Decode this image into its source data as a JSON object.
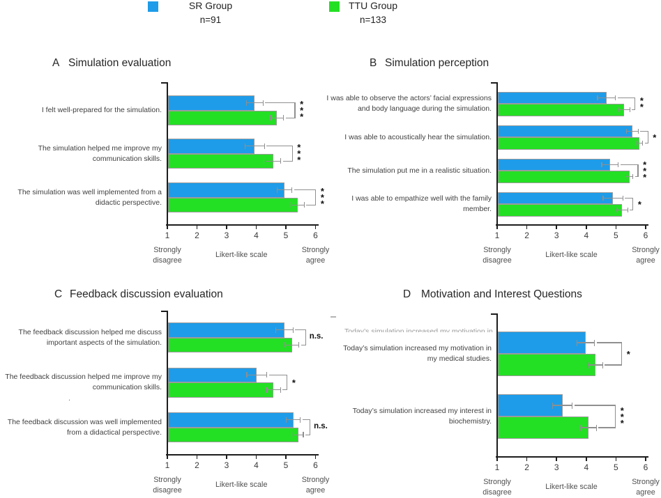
{
  "legend": {
    "items": [
      {
        "label": "SR Group",
        "n": "n=91",
        "color": "#1e9ce9"
      },
      {
        "label": "TTU Group",
        "n": "n=133",
        "color": "#24e024"
      }
    ]
  },
  "axis": {
    "min": 1,
    "max": 6,
    "ticks": [
      "1",
      "2",
      "3",
      "4",
      "5",
      "6"
    ],
    "left_label": "Strongly\ndisagree",
    "center_label": "Likert-like scale",
    "right_label": "Strongly\nagree"
  },
  "chart_data": [
    {
      "id": "A",
      "type": "bar",
      "title": "Simulation evaluation",
      "xlabel": "Likert-like scale",
      "xlim": [
        1,
        6
      ],
      "categories": [
        [
          "I felt well-prepared for the simulation."
        ],
        [
          "The simulation helped me improve my",
          "communication skills."
        ],
        [
          "The simulation was well implemented from a",
          "didactic perspective."
        ]
      ],
      "series": [
        {
          "name": "SR Group",
          "values": [
            3.95,
            3.95,
            4.95
          ],
          "errors": [
            0.28,
            0.33,
            0.25
          ]
        },
        {
          "name": "TTU Group",
          "values": [
            4.7,
            4.57,
            5.4
          ],
          "errors": [
            0.22,
            0.26,
            0.22
          ]
        }
      ],
      "significance": [
        "***",
        "***",
        "***"
      ]
    },
    {
      "id": "B",
      "type": "bar",
      "title": "Simulation perception",
      "xlabel": "Likert-like scale",
      "xlim": [
        1,
        6
      ],
      "categories": [
        [
          "I was able to observe the actors’ facial expressions",
          "and body language during the simulation."
        ],
        [
          "I was able to acoustically hear the simulation."
        ],
        [
          "The simulation put me in a realistic situation."
        ],
        [
          "I was able to empathize well with the family",
          "member."
        ]
      ],
      "series": [
        {
          "name": "SR Group",
          "values": [
            4.68,
            5.55,
            4.8,
            4.9
          ],
          "errors": [
            0.3,
            0.2,
            0.28,
            0.33
          ]
        },
        {
          "name": "TTU Group",
          "values": [
            5.27,
            5.8,
            5.45,
            5.2
          ],
          "errors": [
            0.2,
            0.1,
            0.12,
            0.2
          ]
        }
      ],
      "significance": [
        "**",
        "*",
        "***",
        "*"
      ]
    },
    {
      "id": "C",
      "type": "bar",
      "title": "Feedback discussion evaluation",
      "xlabel": "Likert-like scale",
      "xlim": [
        1,
        6
      ],
      "categories": [
        [
          "The feedback discussion helped me discuss",
          "important aspects of the simulation."
        ],
        [
          "The feedback discussion helped me improve my",
          "communication skills."
        ],
        [
          "The feedback discussion was well implemented",
          "from a didactical perspective."
        ]
      ],
      "series": [
        {
          "name": "SR Group",
          "values": [
            4.95,
            4.02,
            5.25
          ],
          "errors": [
            0.29,
            0.34,
            0.24
          ]
        },
        {
          "name": "TTU Group",
          "values": [
            5.2,
            4.58,
            5.42
          ],
          "errors": [
            0.24,
            0.24,
            0.17
          ]
        }
      ],
      "significance": [
        "n.s.",
        "*",
        "n.s."
      ]
    },
    {
      "id": "D",
      "type": "bar",
      "title": "Motivation and Interest Questions",
      "xlabel": "Likert-like scale",
      "xlim": [
        1,
        6
      ],
      "categories": [
        [
          "Today’s simulation increased my motivation in",
          "my medical studies."
        ],
        [
          "Today’s simulation increased my interest in",
          "biochemistry."
        ]
      ],
      "series": [
        {
          "name": "SR Group",
          "values": [
            3.98,
            3.2
          ],
          "errors": [
            0.3,
            0.33
          ]
        },
        {
          "name": "TTU Group",
          "values": [
            4.3,
            4.07
          ],
          "errors": [
            0.25,
            0.27
          ]
        }
      ],
      "significance": [
        "*",
        "***"
      ]
    }
  ],
  "artifacts": {
    "d_ghost_line": "Today’s simulation increased my motivation in my medical studies.",
    "c_stray_mark": "."
  }
}
